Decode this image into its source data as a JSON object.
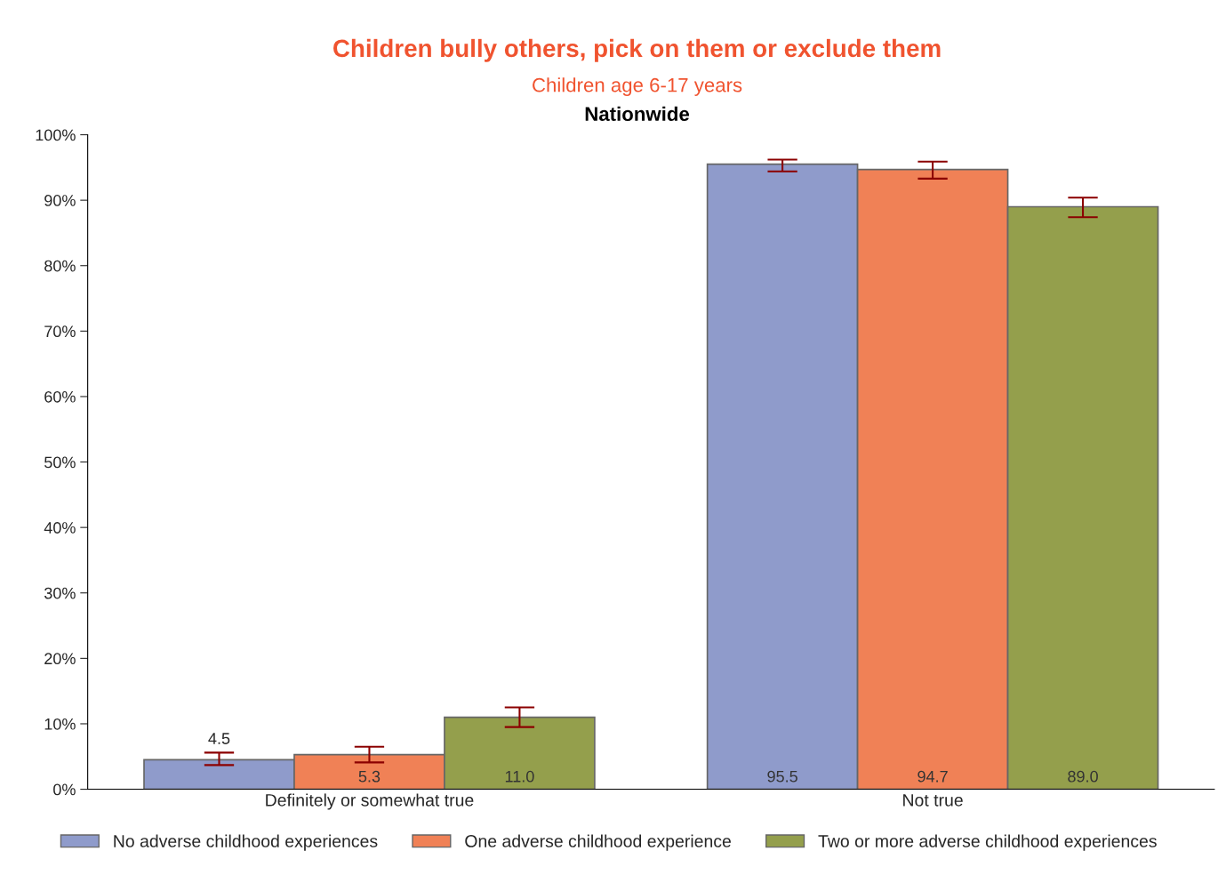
{
  "chart_data": {
    "type": "bar",
    "title": "Children bully others, pick on them or exclude them",
    "subtitle": "Children age 6-17 years",
    "annotations": [
      "Nationwide"
    ],
    "categories": [
      "Definitely or somewhat true",
      "Not true"
    ],
    "series": [
      {
        "name": "No adverse childhood experiences",
        "color": "#8f9bcb",
        "values": [
          4.5,
          95.5
        ],
        "value_labels": [
          "4.5",
          "95.5"
        ],
        "errors": [
          [
            3.7,
            5.6
          ],
          [
            94.4,
            96.2
          ]
        ]
      },
      {
        "name": "One adverse childhood experience",
        "color": "#f08156",
        "values": [
          5.3,
          94.7
        ],
        "value_labels": [
          "5.3",
          "94.7"
        ],
        "errors": [
          [
            4.1,
            6.5
          ],
          [
            93.3,
            95.9
          ]
        ]
      },
      {
        "name": "Two or more adverse childhood experiences",
        "color": "#949f4c",
        "values": [
          11.0,
          89.0
        ],
        "value_labels": [
          "11.0",
          "89.0"
        ],
        "errors": [
          [
            9.5,
            12.5
          ],
          [
            87.4,
            90.4
          ]
        ]
      }
    ],
    "ylim": [
      0,
      100
    ],
    "yticks": [
      {
        "value": 0,
        "label": "0%"
      },
      {
        "value": 10,
        "label": "10%"
      },
      {
        "value": 20,
        "label": "20%"
      },
      {
        "value": 30,
        "label": "30%"
      },
      {
        "value": 40,
        "label": "40%"
      },
      {
        "value": 50,
        "label": "50%"
      },
      {
        "value": 60,
        "label": "60%"
      },
      {
        "value": 70,
        "label": "70%"
      },
      {
        "value": 80,
        "label": "80%"
      },
      {
        "value": 90,
        "label": "90%"
      },
      {
        "value": 100,
        "label": "100%"
      }
    ],
    "grid": false,
    "legend": "bottom"
  }
}
